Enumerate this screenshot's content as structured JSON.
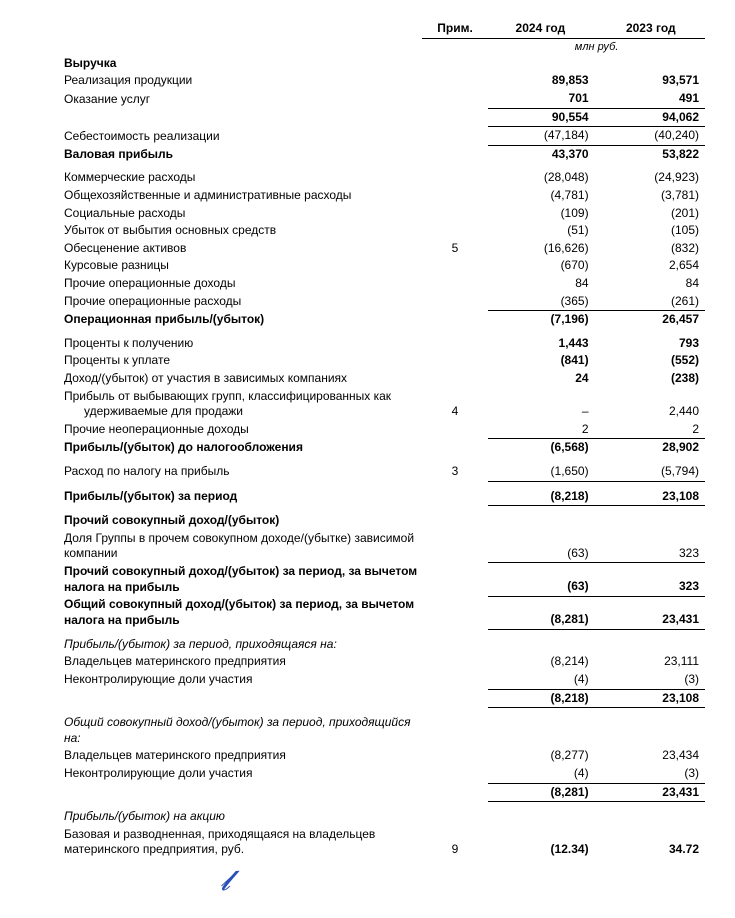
{
  "header": {
    "note_col": "Прим.",
    "year1": "2024 год",
    "year2": "2023 год",
    "unit": "млн руб."
  },
  "rows": [
    {
      "label": "Выручка",
      "bold": true
    },
    {
      "label": "Реализация продукции",
      "v1": "89,853",
      "v2": "93,571",
      "bold_vals": true
    },
    {
      "label": "Оказание услуг",
      "v1": "701",
      "v2": "491",
      "bold_vals": true,
      "underline": true
    },
    {
      "label": "",
      "v1": "90,554",
      "v2": "94,062",
      "bold_vals": true,
      "underline": true
    },
    {
      "label": "Себестоимость реализации",
      "v1": "(47,184)",
      "v2": "(40,240)",
      "underline": true
    },
    {
      "label": "Валовая прибыль",
      "bold": true,
      "v1": "43,370",
      "v2": "53,822",
      "bold_vals": true
    },
    {
      "spacer": true
    },
    {
      "label": "Коммерческие расходы",
      "v1": "(28,048)",
      "v2": "(24,923)"
    },
    {
      "label": "Общехозяйственные и административные расходы",
      "v1": "(4,781)",
      "v2": "(3,781)"
    },
    {
      "label": "Социальные расходы",
      "v1": "(109)",
      "v2": "(201)"
    },
    {
      "label": "Убыток от выбытия основных средств",
      "v1": "(51)",
      "v2": "(105)"
    },
    {
      "label": "Обесценение активов",
      "note": "5",
      "v1": "(16,626)",
      "v2": "(832)"
    },
    {
      "label": "Курсовые разницы",
      "v1": "(670)",
      "v2": "2,654"
    },
    {
      "label": "Прочие операционные доходы",
      "v1": "84",
      "v2": "84"
    },
    {
      "label": "Прочие операционные расходы",
      "v1": "(365)",
      "v2": "(261)",
      "underline": true
    },
    {
      "label": "Операционная прибыль/(убыток)",
      "bold": true,
      "v1": "(7,196)",
      "v2": "26,457",
      "bold_vals": true
    },
    {
      "spacer": true
    },
    {
      "label": "Проценты к получению",
      "v1": "1,443",
      "v2": "793",
      "bold_vals": true
    },
    {
      "label": "Проценты к уплате",
      "v1": "(841)",
      "v2": "(552)",
      "bold_vals": true
    },
    {
      "label": "Доход/(убыток) от участия в зависимых компаниях",
      "v1": "24",
      "v2": "(238)",
      "bold_vals": true
    },
    {
      "label": "Прибыль от выбывающих групп, классифицированных как удерживаемые для продажи",
      "note": "4",
      "v1": "–",
      "v2": "2,440",
      "indent2": true
    },
    {
      "label": "Прочие неоперационные доходы",
      "v1": "2",
      "v2": "2",
      "underline": true
    },
    {
      "label": "Прибыль/(убыток) до налогообложения",
      "bold": true,
      "v1": "(6,568)",
      "v2": "28,902",
      "bold_vals": true
    },
    {
      "spacer": true
    },
    {
      "label": "Расход по налогу на прибыль",
      "note": "3",
      "v1": "(1,650)",
      "v2": "(5,794)",
      "underline": true
    },
    {
      "spacer": true
    },
    {
      "label": "Прибыль/(убыток) за период",
      "bold": true,
      "v1": "(8,218)",
      "v2": "23,108",
      "bold_vals": true,
      "underline": true
    },
    {
      "spacer": true
    },
    {
      "label": "Прочий совокупный доход/(убыток)",
      "bold": true
    },
    {
      "label": "Доля Группы в прочем совокупном доходе/(убытке) зависимой компании",
      "v1": "(63)",
      "v2": "323",
      "underline": true
    },
    {
      "label": "Прочий совокупный доход/(убыток) за период, за вычетом налога на прибыль",
      "bold": true,
      "v1": "(63)",
      "v2": "323",
      "bold_vals": true,
      "underline": true
    },
    {
      "label": "Общий совокупный доход/(убыток) за период, за вычетом налога на прибыль",
      "bold": true,
      "v1": "(8,281)",
      "v2": "23,431",
      "bold_vals": true,
      "underline": true
    },
    {
      "spacer": true
    },
    {
      "label": "Прибыль/(убыток) за период, приходящаяся на:",
      "italic": true
    },
    {
      "label": "Владельцев материнского предприятия",
      "v1": "(8,214)",
      "v2": "23,111"
    },
    {
      "label": "Неконтролирующие доли участия",
      "v1": "(4)",
      "v2": "(3)",
      "underline": true
    },
    {
      "label": "",
      "v1": "(8,218)",
      "v2": "23,108",
      "bold_vals": true,
      "underline": true
    },
    {
      "spacer": true
    },
    {
      "label": "Общий совокупный доход/(убыток) за период, приходящийся на:",
      "italic": true
    },
    {
      "label": "Владельцев материнского предприятия",
      "v1": "(8,277)",
      "v2": "23,434"
    },
    {
      "label": "Неконтролирующие доли участия",
      "v1": "(4)",
      "v2": "(3)",
      "underline": true
    },
    {
      "label": "",
      "v1": "(8,281)",
      "v2": "23,431",
      "bold_vals": true,
      "underline": true
    },
    {
      "spacer": true
    },
    {
      "label": "Прибыль/(убыток) на акцию",
      "italic": true
    },
    {
      "label": "Базовая и разводненная, приходящаяся на владельцев материнского предприятия, руб.",
      "note": "9",
      "v1": "(12.34)",
      "v2": "34.72",
      "bold_vals": true
    }
  ]
}
